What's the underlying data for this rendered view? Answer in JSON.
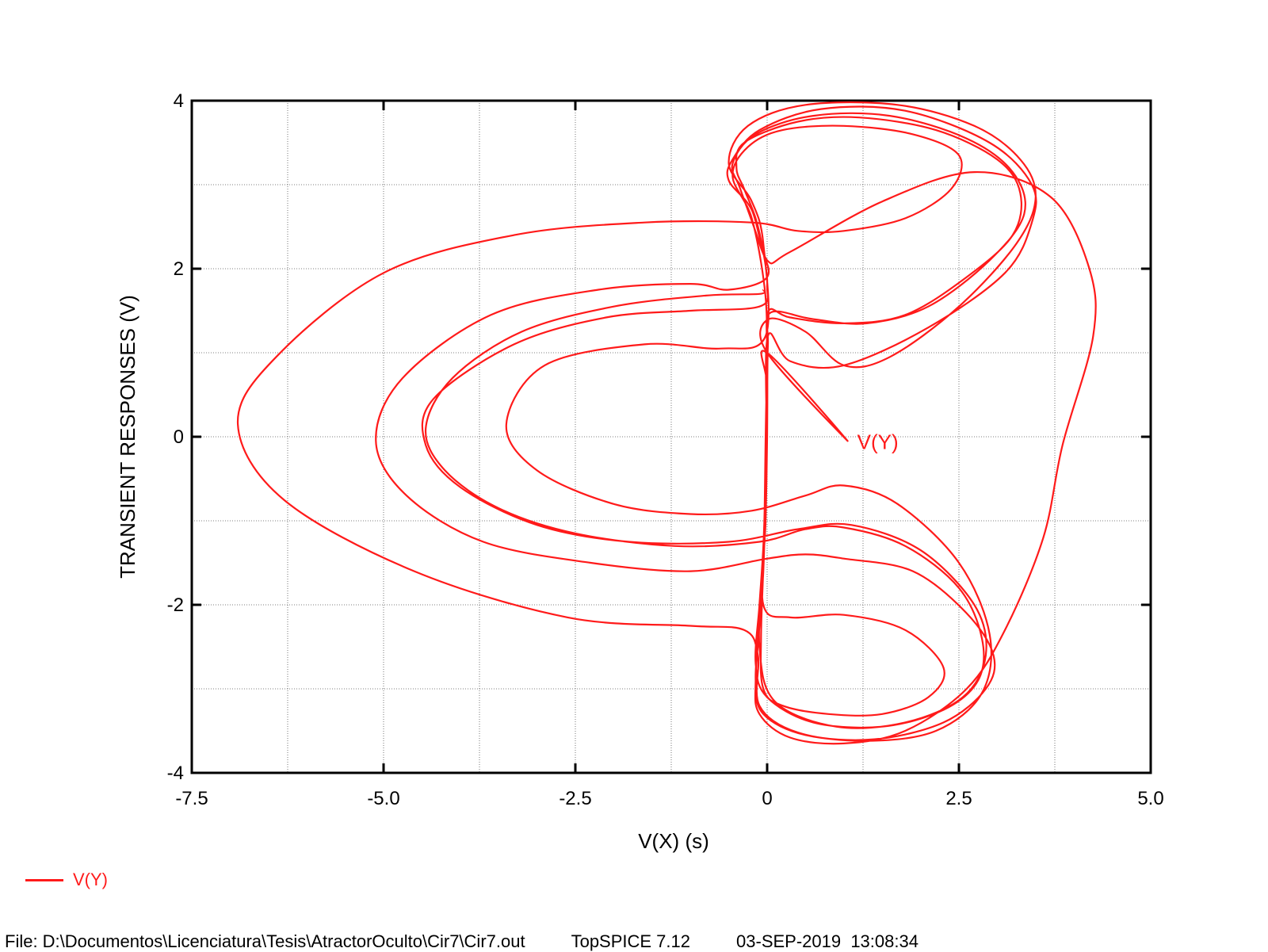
{
  "chart_data": {
    "type": "line",
    "title": "",
    "xlabel": "V(X)  (s)",
    "ylabel": "TRANSIENT RESPONSES  (V)",
    "xlim": [
      -7.5,
      5.0
    ],
    "ylim": [
      -4,
      4
    ],
    "x_ticks": [
      -7.5,
      -5.0,
      -2.5,
      0,
      2.5,
      5.0
    ],
    "x_tick_labels": [
      "-7.5",
      "-5.0",
      "-2.5",
      "0",
      "2.5",
      "5.0"
    ],
    "y_ticks": [
      -4,
      -2,
      0,
      2,
      4
    ],
    "y_tick_labels": [
      "-4",
      "-2",
      "0",
      "2",
      "4"
    ],
    "grid": true,
    "legend_position": "bottom-left",
    "annotation": {
      "text": "V(Y)",
      "x": 1.05,
      "y": -0.05,
      "arrow_to": [
        0.0,
        1.0
      ]
    },
    "series": [
      {
        "name": "V(Y)",
        "color": "#ff1a1a",
        "points": [
          [
            -0.05,
            1.75
          ],
          [
            -0.1,
            1.7
          ],
          [
            -0.8,
            1.68
          ],
          [
            -2.0,
            1.55
          ],
          [
            -3.2,
            1.25
          ],
          [
            -4.1,
            0.7
          ],
          [
            -4.45,
            0.1
          ],
          [
            -4.2,
            -0.4
          ],
          [
            -3.5,
            -0.85
          ],
          [
            -2.5,
            -1.15
          ],
          [
            -1.2,
            -1.3
          ],
          [
            -0.1,
            -1.25
          ],
          [
            0.5,
            -1.1
          ],
          [
            1.0,
            -1.08
          ],
          [
            1.8,
            -1.3
          ],
          [
            2.5,
            -1.8
          ],
          [
            2.8,
            -2.4
          ],
          [
            2.75,
            -2.9
          ],
          [
            2.3,
            -3.25
          ],
          [
            1.5,
            -3.45
          ],
          [
            0.6,
            -3.4
          ],
          [
            0.0,
            -3.1
          ],
          [
            -0.15,
            -2.7
          ],
          [
            -0.1,
            -2.0
          ],
          [
            -0.05,
            -1.3
          ],
          [
            -0.02,
            -0.5
          ],
          [
            0.0,
            0.3
          ],
          [
            0.0,
            1.0
          ],
          [
            0.02,
            1.5
          ],
          [
            0.3,
            1.42
          ],
          [
            1.0,
            1.35
          ],
          [
            1.8,
            1.45
          ],
          [
            2.6,
            1.9
          ],
          [
            3.2,
            2.4
          ],
          [
            3.3,
            2.9
          ],
          [
            3.0,
            3.3
          ],
          [
            2.2,
            3.65
          ],
          [
            1.2,
            3.8
          ],
          [
            0.4,
            3.75
          ],
          [
            -0.3,
            3.5
          ],
          [
            -0.4,
            3.2
          ],
          [
            -0.3,
            2.95
          ],
          [
            -0.15,
            2.6
          ],
          [
            -0.05,
            2.2
          ],
          [
            0.0,
            1.8
          ],
          [
            -0.1,
            1.55
          ],
          [
            -1.0,
            1.5
          ],
          [
            -2.1,
            1.42
          ],
          [
            -3.3,
            1.1
          ],
          [
            -4.35,
            0.45
          ],
          [
            -4.45,
            -0.1
          ],
          [
            -4.0,
            -0.6
          ],
          [
            -3.0,
            -1.05
          ],
          [
            -1.8,
            -1.25
          ],
          [
            -0.5,
            -1.25
          ],
          [
            0.4,
            -1.1
          ],
          [
            1.1,
            -1.05
          ],
          [
            2.0,
            -1.35
          ],
          [
            2.7,
            -2.0
          ],
          [
            2.85,
            -2.6
          ],
          [
            2.55,
            -3.1
          ],
          [
            1.8,
            -3.4
          ],
          [
            0.9,
            -3.45
          ],
          [
            0.1,
            -3.15
          ],
          [
            -0.1,
            -2.5
          ],
          [
            -0.05,
            -1.6
          ],
          [
            -0.02,
            -0.7
          ],
          [
            0.0,
            0.4
          ],
          [
            0.01,
            1.1
          ],
          [
            0.05,
            1.48
          ],
          [
            0.6,
            1.4
          ],
          [
            1.3,
            1.35
          ],
          [
            2.1,
            1.55
          ],
          [
            2.9,
            2.1
          ],
          [
            3.35,
            2.65
          ],
          [
            3.2,
            3.15
          ],
          [
            2.6,
            3.55
          ],
          [
            1.6,
            3.82
          ],
          [
            0.6,
            3.82
          ],
          [
            -0.15,
            3.6
          ],
          [
            -0.45,
            3.25
          ],
          [
            -0.35,
            2.95
          ],
          [
            -0.1,
            2.3
          ],
          [
            0.0,
            1.9
          ],
          [
            -0.5,
            1.75
          ],
          [
            -1.0,
            1.82
          ],
          [
            -2.2,
            1.75
          ],
          [
            -3.6,
            1.45
          ],
          [
            -4.75,
            0.7
          ],
          [
            -5.1,
            -0.05
          ],
          [
            -4.7,
            -0.7
          ],
          [
            -3.7,
            -1.25
          ],
          [
            -2.3,
            -1.5
          ],
          [
            -1.0,
            -1.6
          ],
          [
            0.0,
            -1.45
          ],
          [
            0.5,
            -1.4
          ],
          [
            1.0,
            -1.45
          ],
          [
            1.9,
            -1.6
          ],
          [
            2.6,
            -2.1
          ],
          [
            2.95,
            -2.6
          ],
          [
            2.85,
            -3.0
          ],
          [
            2.3,
            -3.4
          ],
          [
            1.4,
            -3.6
          ],
          [
            0.5,
            -3.55
          ],
          [
            -0.05,
            -3.3
          ],
          [
            -0.15,
            -2.9
          ],
          [
            -0.1,
            -2.2
          ],
          [
            -0.05,
            -1.4
          ],
          [
            -0.02,
            -0.3
          ],
          [
            0.0,
            0.6
          ],
          [
            0.0,
            1.0
          ],
          [
            1.05,
            -0.05
          ],
          [
            0.0,
            1.0
          ],
          [
            0.02,
            1.4
          ],
          [
            0.5,
            1.25
          ],
          [
            1.0,
            0.85
          ],
          [
            1.6,
            0.95
          ],
          [
            2.5,
            1.55
          ],
          [
            3.25,
            2.3
          ],
          [
            3.5,
            2.85
          ],
          [
            3.3,
            3.3
          ],
          [
            2.7,
            3.7
          ],
          [
            1.7,
            3.95
          ],
          [
            0.5,
            3.95
          ],
          [
            -0.25,
            3.7
          ],
          [
            -0.5,
            3.25
          ],
          [
            -0.2,
            2.8
          ],
          [
            -0.05,
            2.3
          ],
          [
            -0.02,
            1.2
          ],
          [
            -0.6,
            1.05
          ],
          [
            -1.6,
            1.1
          ],
          [
            -2.9,
            0.85
          ],
          [
            -3.4,
            0.15
          ],
          [
            -3.0,
            -0.4
          ],
          [
            -2.0,
            -0.8
          ],
          [
            -1.0,
            -0.92
          ],
          [
            -0.2,
            -0.88
          ],
          [
            0.5,
            -0.7
          ],
          [
            1.0,
            -0.58
          ],
          [
            1.7,
            -0.8
          ],
          [
            2.5,
            -1.5
          ],
          [
            2.9,
            -2.35
          ],
          [
            2.8,
            -3.05
          ],
          [
            2.2,
            -3.5
          ],
          [
            1.3,
            -3.62
          ],
          [
            0.4,
            -3.52
          ],
          [
            -0.1,
            -3.2
          ],
          [
            -0.12,
            -2.6
          ],
          [
            -0.3,
            -2.3
          ],
          [
            -1.0,
            -2.25
          ],
          [
            -2.6,
            -2.15
          ],
          [
            -4.6,
            -1.6
          ],
          [
            -6.3,
            -0.75
          ],
          [
            -6.9,
            0.15
          ],
          [
            -6.4,
            0.95
          ],
          [
            -5.0,
            1.95
          ],
          [
            -3.3,
            2.4
          ],
          [
            -1.6,
            2.55
          ],
          [
            -0.2,
            2.55
          ],
          [
            0.4,
            2.45
          ],
          [
            1.0,
            2.45
          ],
          [
            1.8,
            2.6
          ],
          [
            2.4,
            2.95
          ],
          [
            2.5,
            3.35
          ],
          [
            1.9,
            3.6
          ],
          [
            1.0,
            3.7
          ],
          [
            0.2,
            3.65
          ],
          [
            -0.25,
            3.45
          ],
          [
            -0.45,
            3.1
          ],
          [
            -0.2,
            2.6
          ],
          [
            -0.03,
            1.75
          ],
          [
            0.0,
            1.0
          ],
          [
            0.0,
            0.0
          ],
          [
            -0.02,
            -1.0
          ],
          [
            -0.05,
            -2.0
          ],
          [
            0.3,
            -2.15
          ],
          [
            1.0,
            -2.12
          ],
          [
            1.8,
            -2.3
          ],
          [
            2.3,
            -2.75
          ],
          [
            2.1,
            -3.1
          ],
          [
            1.5,
            -3.3
          ],
          [
            0.8,
            -3.3
          ],
          [
            0.2,
            -3.2
          ],
          [
            -0.05,
            -3.0
          ],
          [
            -0.08,
            -2.4
          ],
          [
            -0.04,
            -1.3
          ],
          [
            -0.01,
            0.0
          ],
          [
            0.01,
            1.2
          ],
          [
            0.3,
            0.9
          ],
          [
            1.0,
            0.85
          ],
          [
            2.1,
            1.3
          ],
          [
            3.1,
            1.95
          ],
          [
            3.45,
            2.55
          ],
          [
            3.45,
            3.0
          ],
          [
            2.9,
            3.5
          ],
          [
            1.8,
            3.88
          ],
          [
            0.7,
            3.9
          ],
          [
            -0.1,
            3.65
          ],
          [
            -0.45,
            3.3
          ],
          [
            -0.5,
            3.05
          ],
          [
            -0.2,
            2.7
          ],
          [
            0.0,
            2.1
          ],
          [
            0.3,
            2.2
          ],
          [
            1.5,
            2.8
          ],
          [
            2.7,
            3.15
          ],
          [
            3.7,
            2.85
          ],
          [
            4.2,
            2.0
          ],
          [
            4.25,
            1.2
          ],
          [
            3.85,
            -0.1
          ],
          [
            3.6,
            -1.2
          ],
          [
            3.1,
            -2.3
          ],
          [
            2.6,
            -3.0
          ],
          [
            1.8,
            -3.5
          ],
          [
            1.0,
            -3.65
          ],
          [
            0.3,
            -3.58
          ],
          [
            -0.1,
            -3.3
          ],
          [
            -0.15,
            -2.9
          ],
          [
            -0.08,
            -2.0
          ],
          [
            -0.04,
            -1.2
          ],
          [
            -0.02,
            0.0
          ],
          [
            0.0,
            1.0
          ]
        ]
      }
    ]
  },
  "legend": {
    "items": [
      {
        "label": "V(Y)",
        "color": "#ff1a1a"
      }
    ]
  },
  "footer": {
    "file": "File: D:\\Documentos\\Licenciatura\\Tesis\\AtractorOculto\\Cir7\\Cir7.out",
    "program": "TopSPICE 7.12",
    "timestamp": "03-SEP-2019  13:08:34"
  }
}
